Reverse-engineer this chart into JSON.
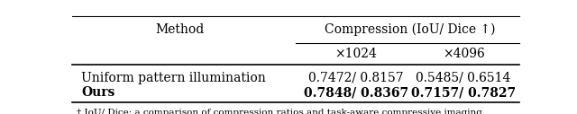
{
  "title": "Compression (IoU/ Dice ↑)",
  "col_headers": [
    "×1024",
    "×4096"
  ],
  "row_headers": [
    "Uniform pattern illumination",
    "Ours"
  ],
  "values": [
    [
      "0.7472/ 0.8157",
      "0.5485/ 0.6514"
    ],
    [
      "0.7848/ 0.8367",
      "0.7157/ 0.7827"
    ]
  ],
  "bold_rows": [
    1
  ],
  "method_col_label": "Method",
  "bg_color": "#ffffff",
  "line_color": "#000000",
  "font_size": 10,
  "caption_text": "† IoU/ Dice: a comparison of compression ratios and task-aware compressive imaging."
}
